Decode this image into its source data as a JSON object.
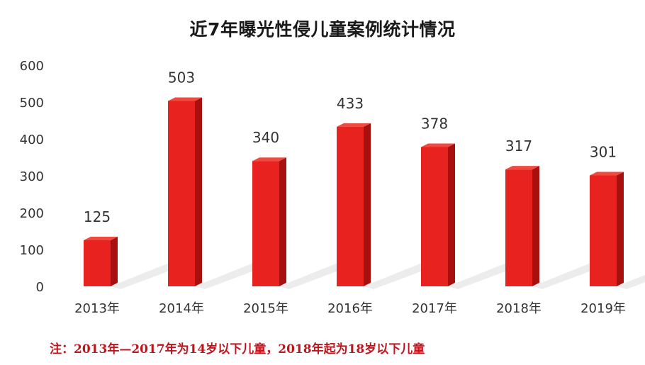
{
  "colors": {
    "bar_front": "#e8221e",
    "bar_side": "#a80f0f",
    "bar_top": "#f04a40",
    "shadow": "#dcdcdc",
    "note_text": "#c0141c"
  },
  "note": "注：2013年—2017年为14岁以下儿童，2018年起为18岁以下儿童",
  "chart_data": {
    "type": "bar",
    "title": "近7年曝光性侵儿童案例统计情况",
    "categories": [
      "2013年",
      "2014年",
      "2015年",
      "2016年",
      "2017年",
      "2018年",
      "2019年"
    ],
    "values": [
      125,
      503,
      340,
      433,
      378,
      317,
      301
    ],
    "data_labels": [
      "125",
      "503",
      "340",
      "433",
      "378",
      "317",
      "301"
    ],
    "ylim": [
      0,
      600
    ],
    "y_ticks": [
      0,
      100,
      200,
      300,
      400,
      500,
      600
    ],
    "grid": false,
    "legend": "none",
    "style": "3d-column"
  }
}
